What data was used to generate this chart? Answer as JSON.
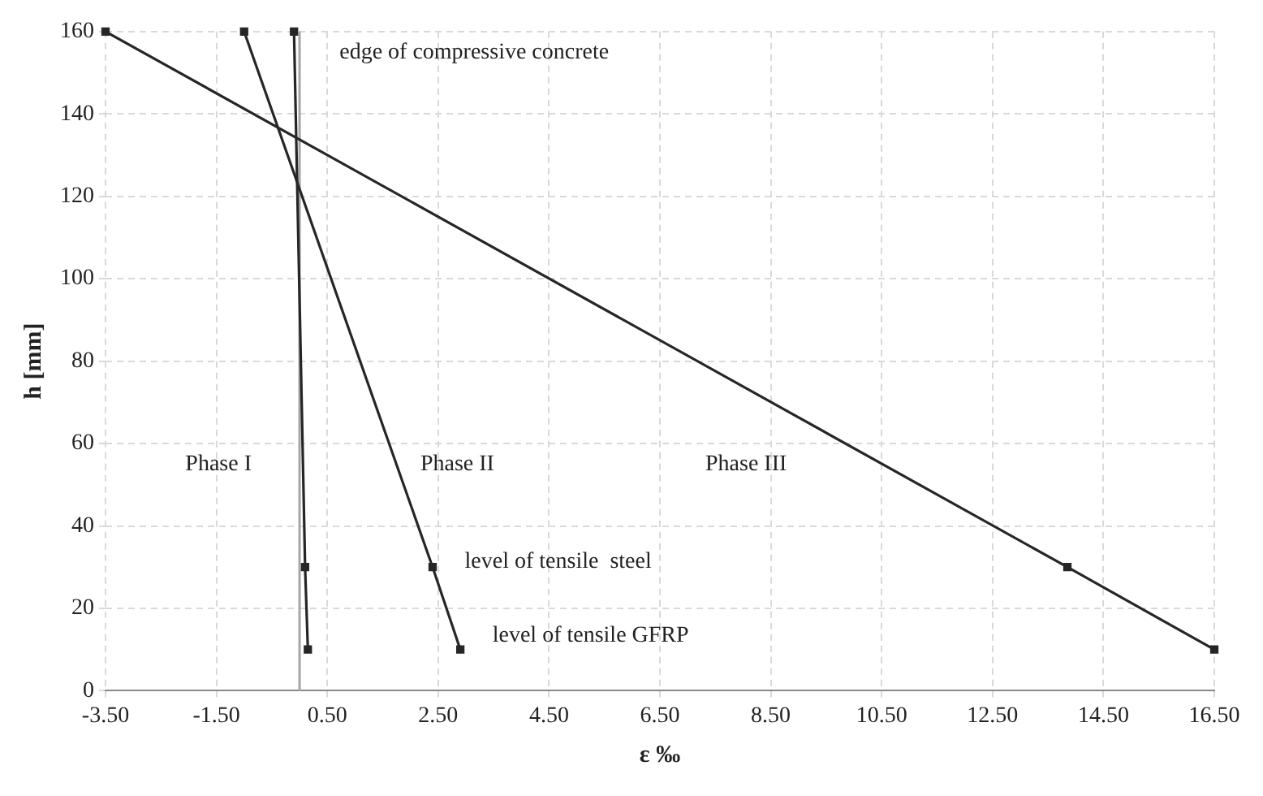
{
  "chart_data": {
    "type": "line",
    "xlabel": "ε ‰",
    "ylabel": "h [mm]",
    "series": [
      {
        "color": "#262626",
        "x": [
          -0.1,
          0.1,
          0.15
        ],
        "values": [
          160,
          30,
          10
        ]
      },
      {
        "color": "#262626",
        "x": [
          -1.0,
          2.4,
          2.9
        ],
        "values": [
          160,
          30,
          10
        ]
      },
      {
        "color": "#262626",
        "x": [
          -3.5,
          13.85,
          16.5
        ],
        "values": [
          160,
          30,
          10
        ]
      }
    ],
    "xlim": [
      -3.5,
      16.5
    ],
    "xticks": [
      {
        "value": -3.5,
        "label": "-3.50"
      },
      {
        "value": -1.5,
        "label": "-1.50"
      },
      {
        "value": 0.5,
        "label": "0.50"
      },
      {
        "value": 2.5,
        "label": "2.50"
      },
      {
        "value": 4.5,
        "label": "4.50"
      },
      {
        "value": 6.5,
        "label": "6.50"
      },
      {
        "value": 8.5,
        "label": "8.50"
      },
      {
        "value": 10.5,
        "label": "10.50"
      },
      {
        "value": 12.5,
        "label": "12.50"
      },
      {
        "value": 14.5,
        "label": "14.50"
      },
      {
        "value": 16.5,
        "label": "16.50"
      }
    ],
    "ylim": [
      0,
      160
    ],
    "yticks": [
      0,
      20,
      40,
      60,
      80,
      100,
      120,
      140,
      160
    ],
    "ref_lines": [
      {
        "axis": "x",
        "value": 0,
        "color": "#a6a6a6"
      }
    ],
    "annotations": [
      "edge of compressive concrete",
      "Phase I",
      "Phase II",
      "Phase III",
      "level of tensile  steel",
      "level of tensile GFRP"
    ],
    "grid": true,
    "legend": false,
    "marker": "square",
    "line_style": "solid"
  }
}
